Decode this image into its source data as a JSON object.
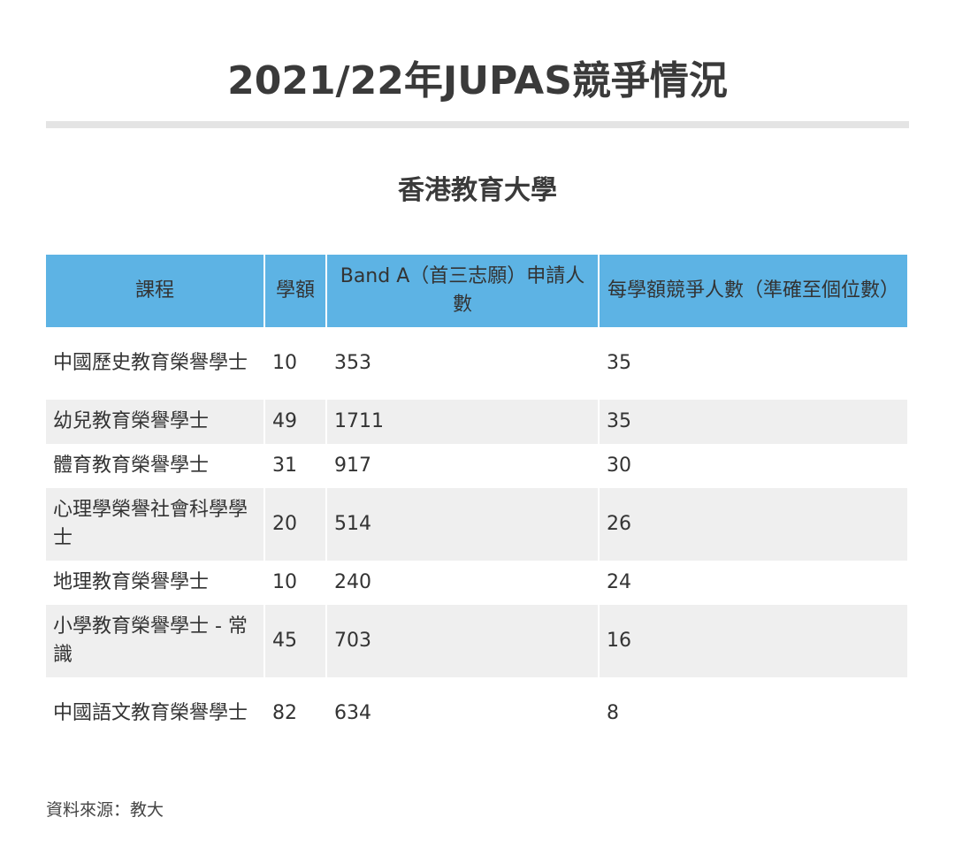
{
  "title": "2021/22年JUPAS競爭情況",
  "subtitle": "香港教育大學",
  "table": {
    "headers": {
      "course": "課程",
      "quota": "學額",
      "band_a": "Band A（首三志願）申請人數",
      "ratio": "每學額競爭人數（準確至個位數）"
    },
    "rows": [
      {
        "course": "中國歷史教育榮譽學士",
        "quota": "10",
        "band_a": "353",
        "ratio": "35"
      },
      {
        "course": "幼兒教育榮譽學士",
        "quota": "49",
        "band_a": "1711",
        "ratio": "35"
      },
      {
        "course": "體育教育榮譽學士",
        "quota": "31",
        "band_a": "917",
        "ratio": "30"
      },
      {
        "course": "心理學榮譽社會科學學士",
        "quota": "20",
        "band_a": "514",
        "ratio": "26"
      },
      {
        "course": "地理教育榮譽學士",
        "quota": "10",
        "band_a": "240",
        "ratio": "24"
      },
      {
        "course": "小學教育榮譽學士 - 常識",
        "quota": "45",
        "band_a": "703",
        "ratio": "16"
      },
      {
        "course": "中國語文教育榮譽學士",
        "quota": "82",
        "band_a": "634",
        "ratio": "8"
      }
    ]
  },
  "source": "資料來源：教大",
  "colors": {
    "header_background": "#5db3e4",
    "striped_row": "#efefef",
    "title_rule": "#e4e4e4"
  }
}
